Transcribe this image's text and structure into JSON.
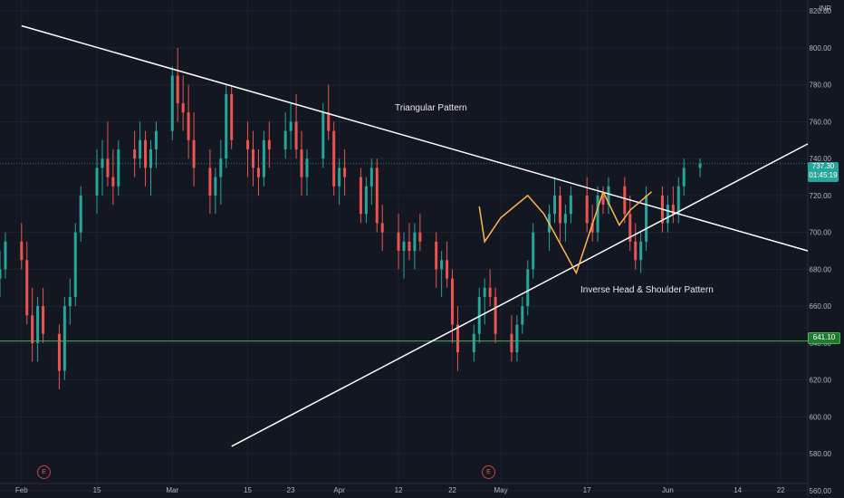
{
  "currency": "INR",
  "last_price": "737.30",
  "countdown": "01:45:19",
  "support_level": "641.10",
  "annotations": {
    "triangle": "Triangular Pattern",
    "ihs": "Inverse Head & Shoulder Pattern"
  },
  "events": [
    {
      "label": "E",
      "date": "2021-02-10"
    },
    {
      "label": "E",
      "date": "2021-04-23"
    }
  ],
  "colors": {
    "background": "#131722",
    "up": "#26a69a",
    "down": "#ef5350",
    "trendline": "#ffffff",
    "support": "#4caf50",
    "pattern": "#ffb74d"
  },
  "chart_data": {
    "type": "candlestick",
    "x_axis": {
      "type": "date",
      "range": [
        "2021-01-28",
        "2021-06-27"
      ],
      "tick_labels": [
        {
          "label": "Feb",
          "date": "2021-02-01"
        },
        {
          "label": "15",
          "date": "2021-02-15"
        },
        {
          "label": "Mar",
          "date": "2021-03-01"
        },
        {
          "label": "15",
          "date": "2021-03-15"
        },
        {
          "label": "23",
          "date": "2021-03-23"
        },
        {
          "label": "Apr",
          "date": "2021-04-01"
        },
        {
          "label": "12",
          "date": "2021-04-12"
        },
        {
          "label": "22",
          "date": "2021-04-22"
        },
        {
          "label": "May",
          "date": "2021-05-01"
        },
        {
          "label": "17",
          "date": "2021-05-17"
        },
        {
          "label": "Jun",
          "date": "2021-06-01"
        },
        {
          "label": "14",
          "date": "2021-06-14"
        },
        {
          "label": "22",
          "date": "2021-06-22"
        }
      ]
    },
    "y_axis": {
      "position": "right",
      "range": [
        556,
        826
      ],
      "ticks": [
        560,
        580,
        600,
        620,
        640,
        660,
        680,
        700,
        720,
        740,
        760,
        780,
        800,
        820
      ]
    },
    "candles": [
      [
        675,
        690,
        665,
        680
      ],
      [
        680,
        700,
        675,
        695
      ],
      [
        695,
        705,
        680,
        685
      ],
      [
        685,
        695,
        650,
        655
      ],
      [
        655,
        670,
        630,
        640
      ],
      [
        640,
        665,
        630,
        660
      ],
      [
        660,
        670,
        640,
        645
      ],
      [
        645,
        650,
        615,
        625
      ],
      [
        625,
        665,
        620,
        660
      ],
      [
        660,
        675,
        650,
        665
      ],
      [
        665,
        705,
        660,
        700
      ],
      [
        700,
        725,
        695,
        720
      ],
      [
        720,
        745,
        710,
        735
      ],
      [
        735,
        750,
        720,
        740
      ],
      [
        740,
        760,
        725,
        730
      ],
      [
        730,
        745,
        715,
        725
      ],
      [
        725,
        750,
        720,
        745
      ],
      [
        745,
        755,
        730,
        740
      ],
      [
        740,
        760,
        735,
        750
      ],
      [
        750,
        755,
        725,
        735
      ],
      [
        735,
        750,
        720,
        745
      ],
      [
        745,
        760,
        735,
        755
      ],
      [
        755,
        790,
        750,
        785
      ],
      [
        785,
        800,
        760,
        770
      ],
      [
        770,
        785,
        755,
        765
      ],
      [
        765,
        780,
        740,
        750
      ],
      [
        750,
        765,
        725,
        735
      ],
      [
        735,
        745,
        710,
        720
      ],
      [
        720,
        735,
        710,
        730
      ],
      [
        730,
        750,
        715,
        740
      ],
      [
        740,
        780,
        735,
        775
      ],
      [
        775,
        780,
        745,
        750
      ],
      [
        750,
        760,
        730,
        745
      ],
      [
        745,
        755,
        725,
        735
      ],
      [
        735,
        745,
        720,
        730
      ],
      [
        730,
        755,
        725,
        750
      ],
      [
        750,
        760,
        735,
        745
      ],
      [
        745,
        765,
        740,
        755
      ],
      [
        755,
        770,
        745,
        760
      ],
      [
        760,
        775,
        740,
        745
      ],
      [
        745,
        755,
        720,
        730
      ],
      [
        730,
        745,
        720,
        740
      ],
      [
        740,
        770,
        735,
        765
      ],
      [
        765,
        780,
        750,
        755
      ],
      [
        755,
        760,
        720,
        725
      ],
      [
        725,
        740,
        715,
        735
      ],
      [
        735,
        745,
        720,
        730
      ],
      [
        730,
        735,
        705,
        710
      ],
      [
        710,
        730,
        705,
        725
      ],
      [
        725,
        740,
        715,
        735
      ],
      [
        735,
        740,
        700,
        705
      ],
      [
        705,
        715,
        690,
        700
      ],
      [
        700,
        710,
        680,
        690
      ],
      [
        690,
        700,
        675,
        695
      ],
      [
        695,
        705,
        685,
        690
      ],
      [
        690,
        705,
        680,
        700
      ],
      [
        700,
        710,
        690,
        695
      ],
      [
        695,
        700,
        670,
        680
      ],
      [
        680,
        690,
        665,
        685
      ],
      [
        685,
        695,
        670,
        675
      ],
      [
        675,
        680,
        640,
        650
      ],
      [
        650,
        660,
        625,
        635
      ],
      [
        635,
        650,
        630,
        645
      ],
      [
        645,
        670,
        640,
        665
      ],
      [
        665,
        675,
        650,
        670
      ],
      [
        670,
        680,
        660,
        665
      ],
      [
        665,
        670,
        640,
        645
      ],
      [
        645,
        655,
        630,
        635
      ],
      [
        635,
        655,
        630,
        650
      ],
      [
        650,
        665,
        645,
        660
      ],
      [
        660,
        685,
        655,
        680
      ],
      [
        680,
        705,
        675,
        700
      ],
      [
        700,
        715,
        690,
        710
      ],
      [
        710,
        730,
        705,
        720
      ],
      [
        720,
        725,
        695,
        705
      ],
      [
        705,
        715,
        695,
        710
      ],
      [
        710,
        725,
        705,
        720
      ],
      [
        720,
        730,
        700,
        705
      ],
      [
        705,
        715,
        695,
        700
      ],
      [
        700,
        725,
        695,
        720
      ],
      [
        720,
        725,
        710,
        715
      ],
      [
        715,
        730,
        710,
        725
      ],
      [
        725,
        730,
        705,
        710
      ],
      [
        710,
        720,
        690,
        695
      ],
      [
        695,
        705,
        680,
        685
      ],
      [
        685,
        700,
        678,
        695
      ],
      [
        695,
        725,
        690,
        720
      ],
      [
        720,
        725,
        700,
        705
      ],
      [
        705,
        720,
        700,
        715
      ],
      [
        715,
        725,
        705,
        710
      ],
      [
        710,
        730,
        705,
        725
      ],
      [
        725,
        740,
        720,
        735
      ],
      [
        735,
        740,
        730,
        737.3
      ]
    ],
    "trendlines": [
      {
        "name": "upper",
        "from": [
          "2021-02-01",
          812
        ],
        "to": [
          "2021-06-27",
          690
        ]
      },
      {
        "name": "lower",
        "from": [
          "2021-03-12",
          584
        ],
        "to": [
          "2021-06-27",
          748
        ]
      }
    ],
    "horizontal_levels": [
      641.1,
      737.3
    ],
    "pattern_path": [
      [
        "2021-04-27",
        714
      ],
      [
        "2021-04-28",
        695
      ],
      [
        "2021-05-01",
        708
      ],
      [
        "2021-05-06",
        720
      ],
      [
        "2021-05-09",
        710
      ],
      [
        "2021-05-15",
        678
      ],
      [
        "2021-05-20",
        722
      ],
      [
        "2021-05-23",
        704
      ],
      [
        "2021-05-25",
        712
      ],
      [
        "2021-05-29",
        722
      ]
    ]
  }
}
